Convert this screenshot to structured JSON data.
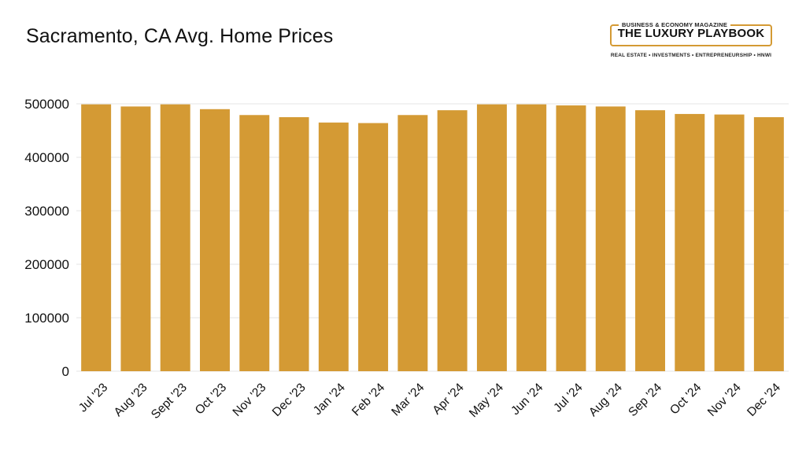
{
  "chart_data": {
    "type": "bar",
    "title": "Sacramento, CA Avg. Home Prices",
    "xlabel": "",
    "ylabel": "",
    "categories": [
      "Jul '23",
      "Aug '23",
      "Sept '23",
      "Oct '23",
      "Nov '23",
      "Dec '23",
      "Jan '24",
      "Feb '24",
      "Mar '24",
      "Apr '24",
      "May '24",
      "Jun '24",
      "Jul '24",
      "Aug '24",
      "Sep '24",
      "Oct '24",
      "Nov '24",
      "Dec '24"
    ],
    "values": [
      499000,
      495000,
      499000,
      490000,
      479000,
      475000,
      465000,
      464000,
      479000,
      488000,
      499000,
      499000,
      497000,
      495000,
      488000,
      481000,
      480000,
      475000
    ],
    "ylim": [
      0,
      500000
    ],
    "yticks": [
      0,
      100000,
      200000,
      300000,
      400000,
      500000
    ],
    "grid": true,
    "bar_color": "#d49a34",
    "grid_color": "#e6e6e6"
  },
  "brand": {
    "top_label": "BUSINESS & ECONOMY MAGAZINE",
    "name": "THE LUXURY PLAYBOOK",
    "tagline": "REAL ESTATE • INVESTMENTS • ENTREPRENEURSHIP • HNWI",
    "accent_color": "#d49a34"
  }
}
